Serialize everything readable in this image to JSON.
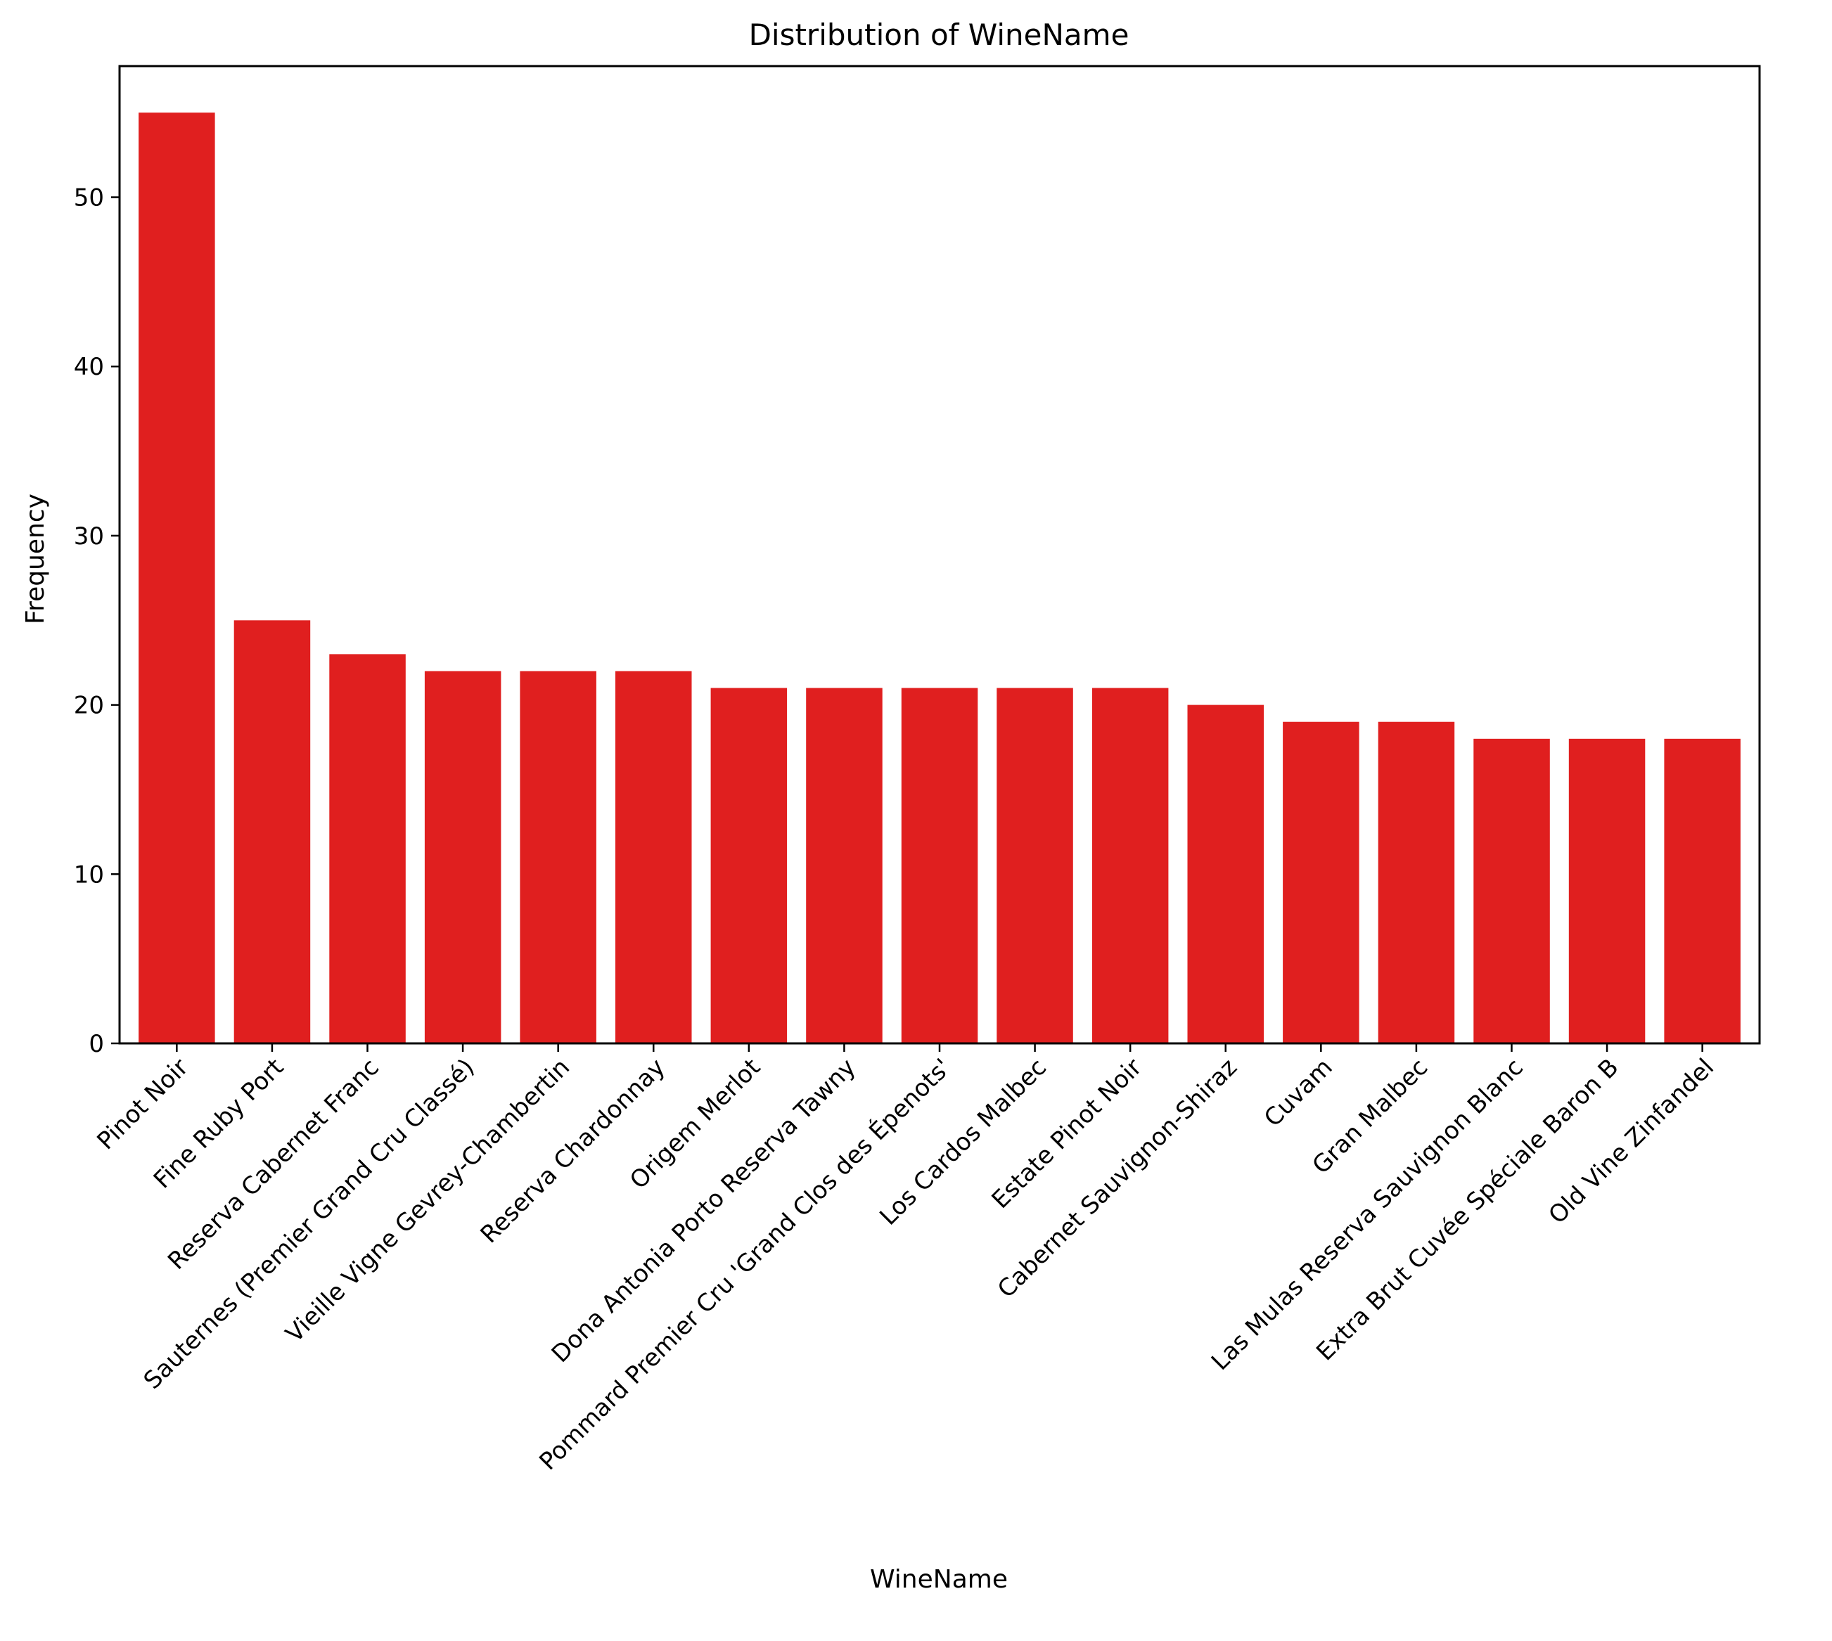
{
  "chart_data": {
    "type": "bar",
    "title": "Distribution of WineName",
    "xlabel": "WineName",
    "ylabel": "Frequency",
    "ylim": [
      0,
      57.75
    ],
    "yticks": [
      0,
      10,
      20,
      30,
      40,
      50
    ],
    "grid": false,
    "bar_color": "#e01f1f",
    "categories": [
      "Pinot Noir",
      "Fine Ruby Port",
      "Reserva Cabernet Franc",
      "Sauternes (Premier Grand Cru Classé)",
      "Vieille Vigne Gevrey-Chambertin",
      "Reserva Chardonnay",
      "Origem Merlot",
      "Dona Antonia Porto Reserva Tawny",
      "Pommard Premier Cru 'Grand Clos des Épenots'",
      "Los Cardos Malbec",
      "Estate Pinot Noir",
      "Cabernet Sauvignon-Shiraz",
      "Cuvam",
      "Gran Malbec",
      "Las Mulas Reserva Sauvignon Blanc",
      "Extra Brut Cuvée Spéciale Baron B",
      "Old Vine Zinfandel"
    ],
    "values": [
      55,
      25,
      23,
      22,
      22,
      22,
      21,
      21,
      21,
      21,
      21,
      20,
      19,
      19,
      18,
      18,
      18
    ]
  }
}
